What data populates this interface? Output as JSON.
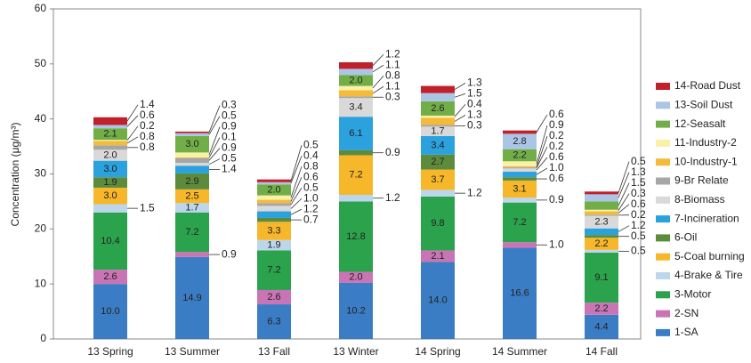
{
  "chart_data": {
    "type": "stacked_bar",
    "y_label": "Concentration (μg/m³)",
    "categories": [
      "13 Spring",
      "13 Summer",
      "13 Fall",
      "13 Winter",
      "14 Spring",
      "14 Summer",
      "14 Fall"
    ],
    "ylim": [
      0,
      60
    ],
    "yticks": [
      0,
      10,
      20,
      30,
      40,
      50,
      60
    ],
    "series": [
      {
        "name": "1-SA",
        "color": "#3b7dc4",
        "values": [
          10,
          14.9,
          6.3,
          10.2,
          14,
          16.6,
          4.4
        ],
        "value_labels": [
          "10.0",
          "14.9",
          "6.3",
          "10.2",
          "14.0",
          "16.6",
          "4.4"
        ]
      },
      {
        "name": "2-SN",
        "color": "#c974b4",
        "values": [
          2.6,
          0.9,
          2.6,
          2,
          2.1,
          1,
          2.2
        ],
        "value_labels": [
          "2.6",
          "0.9",
          "2.6",
          "2.0",
          "2.1",
          "1.0",
          "2.2"
        ]
      },
      {
        "name": "3-Motor",
        "color": "#2ba24c",
        "values": [
          10.4,
          7.2,
          7.2,
          12.8,
          9.8,
          7.2,
          9.1
        ],
        "value_labels": [
          "10.4",
          "7.2",
          "7.2",
          "12.8",
          "9.8",
          "7.2",
          "9.1"
        ]
      },
      {
        "name": "4-Brake & Tire",
        "color": "#bcd6ec",
        "values": [
          1.5,
          1.7,
          1.9,
          1.2,
          1.2,
          0.9,
          0.5
        ],
        "value_labels": [
          "1.5",
          "1.7",
          "1.9",
          "1.2",
          "1.2",
          "0.9",
          "0.5"
        ]
      },
      {
        "name": "5-Coal burning",
        "color": "#f6b72a",
        "values": [
          3,
          2.5,
          3.3,
          7.2,
          3.7,
          3.1,
          2.2
        ],
        "value_labels": [
          "3.0",
          "2.5",
          "3.3",
          "7.2",
          "3.7",
          "3.1",
          "2.2"
        ]
      },
      {
        "name": "6-Oil",
        "color": "#5d8b3c",
        "values": [
          1.9,
          2.9,
          0.7,
          0.9,
          2.7,
          0.6,
          0.5
        ],
        "value_labels": [
          "1.9",
          "2.9",
          "0.7",
          "0.9",
          "2.7",
          "0.6",
          "0.5"
        ]
      },
      {
        "name": "7-Incineration",
        "color": "#2ba1dd",
        "values": [
          3,
          1.4,
          1.2,
          6.1,
          3.4,
          1,
          1.2
        ],
        "value_labels": [
          "3.0",
          "1.4",
          "1.2",
          "6.1",
          "3.4",
          "1.0",
          "1.2"
        ]
      },
      {
        "name": "8-Biomass",
        "color": "#d9d9d9",
        "values": [
          2,
          0.5,
          1,
          3.4,
          1.7,
          0.6,
          2.3
        ],
        "value_labels": [
          "2.0",
          "0.5",
          "1.0",
          "3.4",
          "1.7",
          "0.6",
          "2.3"
        ]
      },
      {
        "name": "9-Br Relate",
        "color": "#a6a6a6",
        "values": [
          0.8,
          0.9,
          0.5,
          0.3,
          0.3,
          0.2,
          0.2
        ],
        "value_labels": [
          "0.8",
          "0.9",
          "0.5",
          "0.3",
          "0.3",
          "0.2",
          "0.2"
        ]
      },
      {
        "name": "10-Industry-1",
        "color": "#f4bb3a",
        "values": [
          0.8,
          0.1,
          0.6,
          1.1,
          1.3,
          0.2,
          0.6
        ],
        "value_labels": [
          "0.8",
          "0.1",
          "0.6",
          "1.1",
          "1.3",
          "0.2",
          "0.6"
        ]
      },
      {
        "name": "11-Industry-2",
        "color": "#f8f1a6",
        "values": [
          0.2,
          0.9,
          0.8,
          0.8,
          0.4,
          0.9,
          0.3
        ],
        "value_labels": [
          "0.2",
          "0.9",
          "0.8",
          "0.8",
          "0.4",
          "0.9",
          "0.3"
        ]
      },
      {
        "name": "12-Seasalt",
        "color": "#72ae48",
        "values": [
          2.1,
          3,
          2,
          2,
          2.6,
          2.2,
          1.5
        ],
        "value_labels": [
          "2.1",
          "3.0",
          "2.0",
          "2.0",
          "2.6",
          "2.2",
          "1.5"
        ]
      },
      {
        "name": "13-Soil Dust",
        "color": "#aac5e5",
        "values": [
          0.6,
          0.5,
          0.4,
          1.1,
          1.5,
          2.8,
          1.3
        ],
        "value_labels": [
          "0.6",
          "0.5",
          "0.4",
          "1.1",
          "1.5",
          "2.8",
          "1.3"
        ]
      },
      {
        "name": "14-Road Dust",
        "color": "#c1202b",
        "values": [
          1.4,
          0.3,
          0.5,
          1.2,
          1.3,
          0.6,
          0.5
        ],
        "value_labels": [
          "1.4",
          "0.3",
          "0.5",
          "1.2",
          "1.3",
          "0.6",
          "0.5"
        ]
      }
    ]
  }
}
